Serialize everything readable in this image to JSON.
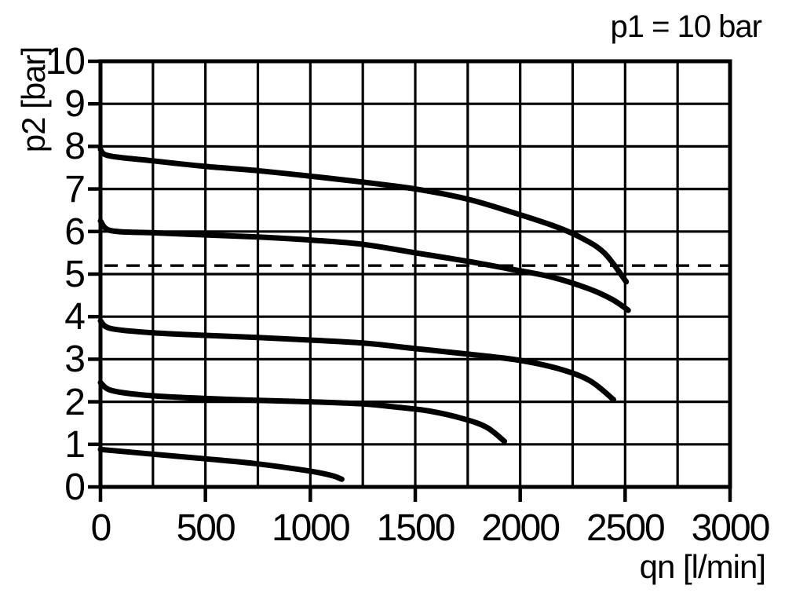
{
  "colors": {
    "foreground": "#000000",
    "background": "#ffffff"
  },
  "chart_data": {
    "type": "line",
    "title": "p1 = 10 bar",
    "xlabel": "qn [l/min]",
    "ylabel": "p2 [bar]",
    "xlim": [
      0,
      3000
    ],
    "ylim": [
      0,
      10
    ],
    "x_tick_values": [
      0,
      500,
      1000,
      1500,
      2000,
      2500,
      3000
    ],
    "x_grid_step": 250,
    "y_tick_values": [
      0,
      1,
      2,
      3,
      4,
      5,
      6,
      7,
      8,
      9,
      10
    ],
    "y_grid_step": 1,
    "grid": true,
    "legend": "none",
    "reference_line": {
      "style": "dashed",
      "p2": 5.2
    },
    "series": [
      {
        "id": "curve-1",
        "points": [
          [
            0,
            7.93
          ],
          [
            40,
            7.78
          ],
          [
            250,
            7.66
          ],
          [
            500,
            7.53
          ],
          [
            750,
            7.43
          ],
          [
            1000,
            7.3
          ],
          [
            1250,
            7.16
          ],
          [
            1500,
            7.0
          ],
          [
            1750,
            6.76
          ],
          [
            1950,
            6.47
          ],
          [
            2150,
            6.15
          ],
          [
            2280,
            5.88
          ],
          [
            2400,
            5.5
          ],
          [
            2505,
            4.82
          ]
        ]
      },
      {
        "id": "curve-2",
        "points": [
          [
            0,
            6.25
          ],
          [
            50,
            6.02
          ],
          [
            250,
            5.97
          ],
          [
            500,
            5.92
          ],
          [
            750,
            5.87
          ],
          [
            1000,
            5.8
          ],
          [
            1250,
            5.7
          ],
          [
            1500,
            5.5
          ],
          [
            1750,
            5.3
          ],
          [
            1950,
            5.12
          ],
          [
            2150,
            4.93
          ],
          [
            2330,
            4.65
          ],
          [
            2440,
            4.4
          ],
          [
            2515,
            4.15
          ]
        ]
      },
      {
        "id": "curve-3",
        "points": [
          [
            0,
            3.9
          ],
          [
            50,
            3.72
          ],
          [
            250,
            3.62
          ],
          [
            500,
            3.56
          ],
          [
            750,
            3.51
          ],
          [
            1000,
            3.45
          ],
          [
            1250,
            3.38
          ],
          [
            1500,
            3.25
          ],
          [
            1750,
            3.12
          ],
          [
            1990,
            2.98
          ],
          [
            2180,
            2.78
          ],
          [
            2330,
            2.5
          ],
          [
            2445,
            2.05
          ]
        ]
      },
      {
        "id": "curve-4",
        "points": [
          [
            0,
            2.45
          ],
          [
            50,
            2.27
          ],
          [
            200,
            2.16
          ],
          [
            400,
            2.1
          ],
          [
            700,
            2.04
          ],
          [
            1000,
            2.0
          ],
          [
            1250,
            1.95
          ],
          [
            1400,
            1.88
          ],
          [
            1570,
            1.78
          ],
          [
            1730,
            1.6
          ],
          [
            1840,
            1.4
          ],
          [
            1925,
            1.07
          ]
        ]
      },
      {
        "id": "curve-5",
        "points": [
          [
            0,
            0.88
          ],
          [
            250,
            0.77
          ],
          [
            500,
            0.66
          ],
          [
            750,
            0.54
          ],
          [
            1000,
            0.37
          ],
          [
            1100,
            0.27
          ],
          [
            1150,
            0.18
          ]
        ]
      }
    ]
  }
}
